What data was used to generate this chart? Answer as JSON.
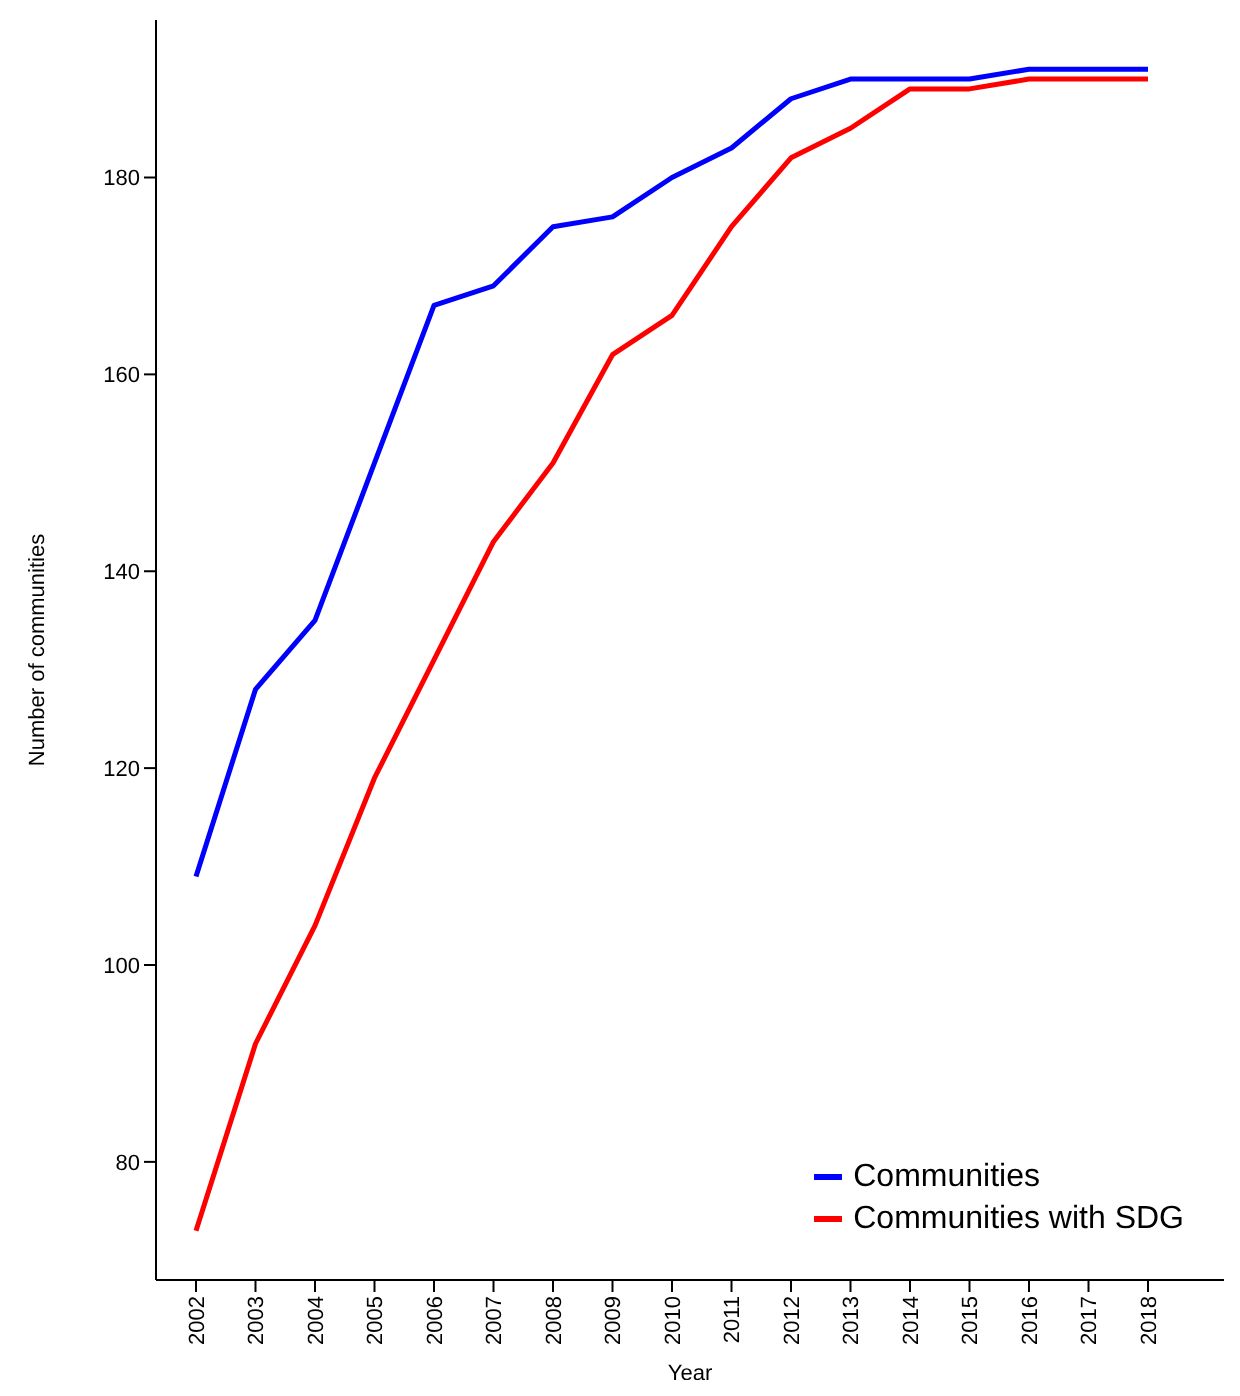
{
  "chart_data": {
    "type": "line",
    "xlabel": "Year",
    "ylabel": "Number of communities",
    "categories": [
      "2002",
      "2003",
      "2004",
      "2005",
      "2006",
      "2007",
      "2008",
      "2009",
      "2010",
      "2011",
      "2012",
      "2013",
      "2014",
      "2015",
      "2016",
      "2017",
      "2018"
    ],
    "series": [
      {
        "name": "Communities",
        "color": "#0000ff",
        "values": [
          109,
          128,
          135,
          151,
          167,
          169,
          175,
          176,
          180,
          183,
          188,
          190,
          190,
          190,
          191,
          191,
          191
        ]
      },
      {
        "name": "Communities with SDG",
        "color": "#ff0000",
        "values": [
          73,
          92,
          104,
          119,
          131,
          143,
          151,
          162,
          166,
          175,
          182,
          185,
          189,
          189,
          190,
          190,
          190
        ]
      }
    ],
    "ylim": [
      68,
      196
    ],
    "yticks": [
      80,
      100,
      120,
      140,
      160,
      180
    ],
    "legend": "bottom right",
    "marker": "none",
    "line_style": "solid"
  }
}
